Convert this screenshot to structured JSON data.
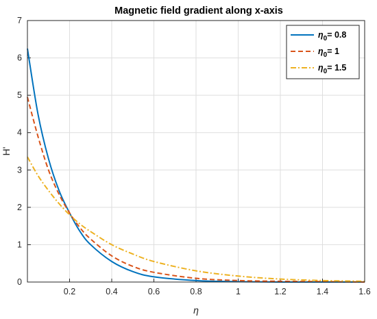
{
  "chart_data": {
    "type": "line",
    "title": "Magnetic field gradient along x-axis",
    "xlabel": "η",
    "ylabel": "H'",
    "xlim": [
      0,
      1.6
    ],
    "ylim": [
      0,
      7
    ],
    "grid": true,
    "legend_position": "top-right",
    "x_ticks": [
      0.2,
      0.4,
      0.6,
      0.8,
      1,
      1.2,
      1.4,
      1.6
    ],
    "y_ticks": [
      0,
      1,
      2,
      3,
      4,
      5,
      6,
      7
    ],
    "x": [
      0,
      0.05,
      0.1,
      0.15,
      0.2,
      0.25,
      0.3,
      0.4,
      0.5,
      0.6,
      0.8,
      1.0,
      1.2,
      1.4,
      1.6
    ],
    "series": [
      {
        "name_symbol": "η",
        "name_subscript": "0",
        "name_value": "= 0.8",
        "color": "#0072BD",
        "dash": "solid",
        "values": [
          6.25,
          4.5,
          3.3,
          2.45,
          1.85,
          1.35,
          1.0,
          0.55,
          0.28,
          0.14,
          0.04,
          0.01,
          0.0,
          0.0,
          0.0
        ]
      },
      {
        "name_symbol": "η",
        "name_subscript": "0",
        "name_value": "= 1",
        "color": "#D95319",
        "dash": "dashed",
        "values": [
          4.95,
          3.9,
          3.0,
          2.35,
          1.85,
          1.45,
          1.15,
          0.7,
          0.42,
          0.26,
          0.1,
          0.04,
          0.02,
          0.01,
          0.0
        ]
      },
      {
        "name_symbol": "η",
        "name_subscript": "0",
        "name_value": "= 1.5",
        "color": "#EDB120",
        "dash": "dashdot",
        "values": [
          3.35,
          2.85,
          2.45,
          2.1,
          1.8,
          1.55,
          1.35,
          1.0,
          0.75,
          0.55,
          0.3,
          0.16,
          0.08,
          0.04,
          0.02
        ]
      }
    ]
  }
}
